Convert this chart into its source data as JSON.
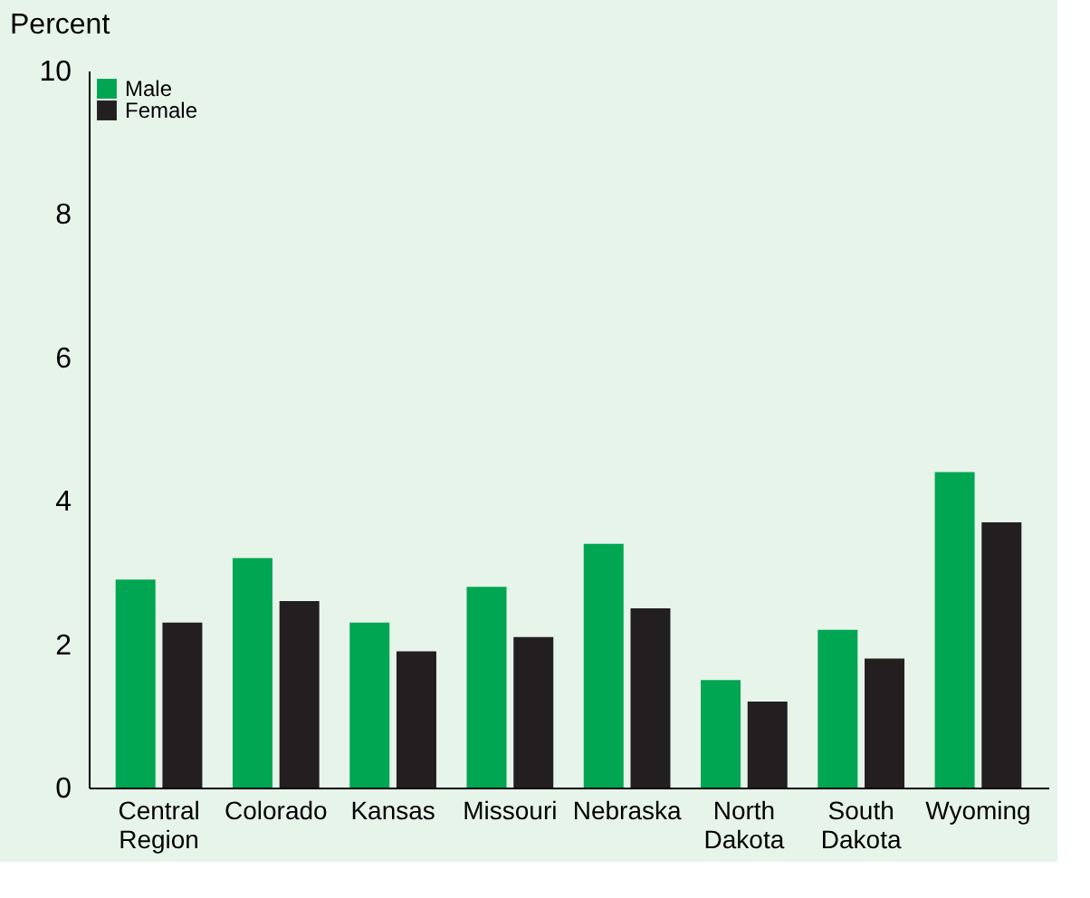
{
  "chart_data": {
    "type": "bar",
    "ylabel": "Percent",
    "categories": [
      "Central Region",
      "Colorado",
      "Kansas",
      "Missouri",
      "Nebraska",
      "North Dakota",
      "South Dakota",
      "Wyoming"
    ],
    "series": [
      {
        "name": "Male",
        "color": "#00a651",
        "values": [
          2.9,
          3.2,
          2.3,
          2.8,
          3.4,
          1.5,
          2.2,
          4.4
        ]
      },
      {
        "name": "Female",
        "color": "#231f20",
        "values": [
          2.3,
          2.6,
          1.9,
          2.1,
          2.5,
          1.2,
          1.8,
          3.7
        ]
      }
    ],
    "ylim": [
      0,
      10
    ],
    "yticks": [
      0,
      2,
      4,
      6,
      8,
      10
    ],
    "grid": false,
    "legend": "top left"
  }
}
